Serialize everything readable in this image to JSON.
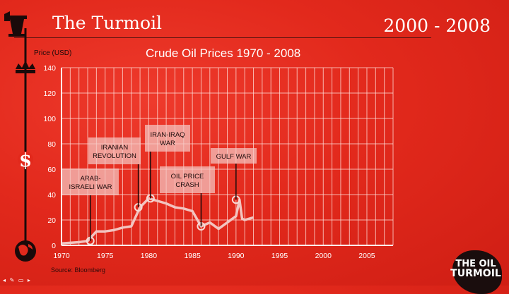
{
  "header": {
    "title": "The Turmoil",
    "years": "2000 - 2008"
  },
  "sidebar": {
    "icons": [
      "oil-pump-icon",
      "crown-icon",
      "dollar-icon",
      "globe-icon"
    ]
  },
  "logo": {
    "line1": "THE OIL",
    "line2": "TURMOIL"
  },
  "source": "Source: Bloomberg",
  "toolbar": {
    "icons": [
      "back-arrow-icon",
      "pen-icon",
      "slide-icon",
      "forward-arrow-icon"
    ]
  },
  "colors": {
    "background": "#e2291c",
    "line": "#f2c4c0",
    "annotation_box": "#f4c7c3"
  },
  "chart_data": {
    "type": "line",
    "title": "Crude Oil Prices 1970 - 2008",
    "xlabel": "",
    "ylabel": "Price (USD)",
    "xlim": [
      1970,
      2008
    ],
    "ylim": [
      0,
      140
    ],
    "grid": true,
    "x_ticks": [
      1970,
      1975,
      1980,
      1985,
      1990,
      1995,
      2000,
      2005
    ],
    "y_ticks": [
      0,
      20,
      40,
      60,
      80,
      100,
      120,
      140
    ],
    "series": [
      {
        "x": [
          1970,
          1971,
          1972,
          1973,
          1974,
          1975,
          1976,
          1977,
          1978,
          1979,
          1980,
          1981,
          1982,
          1983,
          1984,
          1985,
          1986,
          1987,
          1988,
          1989,
          1990,
          1990.4,
          1990.7,
          1991,
          1992
        ],
        "values": [
          1.5,
          2,
          2.5,
          3.5,
          11,
          11,
          12,
          14,
          15,
          30,
          37,
          35,
          33,
          30,
          29,
          27,
          15,
          18,
          13,
          18,
          23,
          36,
          21,
          20,
          22
        ]
      }
    ],
    "markers": [
      {
        "x": 1973.3,
        "y": 3.5
      },
      {
        "x": 1978.8,
        "y": 30
      },
      {
        "x": 1980.2,
        "y": 37
      },
      {
        "x": 1986.0,
        "y": 15
      },
      {
        "x": 1990.0,
        "y": 36
      }
    ],
    "annotations": [
      {
        "lines": [
          "ARAB-",
          "ISRAELI WAR"
        ],
        "x": 1973.3,
        "y": 3.5
      },
      {
        "lines": [
          "IRANIAN",
          "REVOLUTION"
        ],
        "x": 1978.8,
        "y": 30
      },
      {
        "lines": [
          "IRAN-IRAQ",
          "WAR"
        ],
        "x": 1980.2,
        "y": 37
      },
      {
        "lines": [
          "OIL PRICE",
          "CRASH"
        ],
        "x": 1986.0,
        "y": 15
      },
      {
        "lines": [
          "GULF WAR"
        ],
        "x": 1990.0,
        "y": 36
      }
    ]
  }
}
